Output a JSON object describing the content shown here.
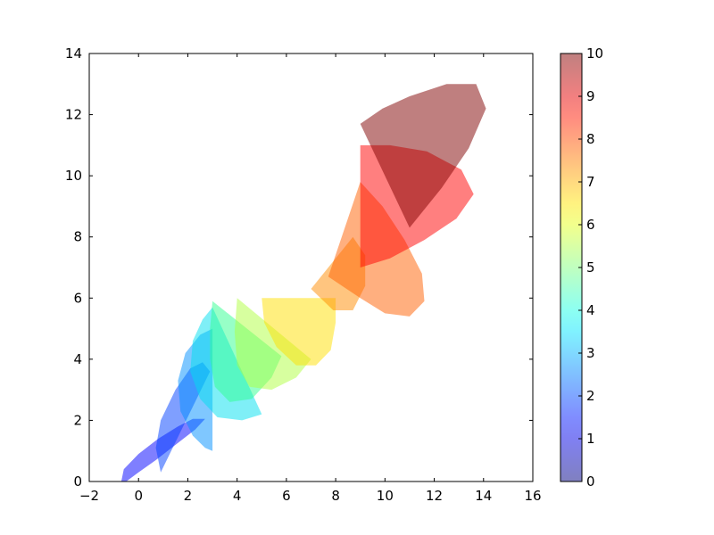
{
  "chart_data": {
    "type": "area",
    "xlim": [
      -2,
      16
    ],
    "ylim": [
      0,
      14
    ],
    "x_ticks": [
      -2,
      0,
      2,
      4,
      6,
      8,
      10,
      12,
      14,
      16
    ],
    "y_ticks": [
      0,
      2,
      4,
      6,
      8,
      10,
      12,
      14
    ],
    "x_tick_labels": [
      "−2",
      "0",
      "2",
      "4",
      "6",
      "8",
      "10",
      "12",
      "14",
      "16"
    ],
    "y_tick_labels": [
      "0",
      "2",
      "4",
      "6",
      "8",
      "10",
      "12",
      "14"
    ],
    "grid": false,
    "legend": "none",
    "colorbar": {
      "range": [
        0,
        10
      ],
      "ticks": [
        0,
        1,
        2,
        3,
        4,
        5,
        6,
        7,
        8,
        9,
        10
      ],
      "tick_labels": [
        "0",
        "1",
        "2",
        "3",
        "4",
        "5",
        "6",
        "7",
        "8",
        "9",
        "10"
      ],
      "colormap": "jet",
      "alpha": 0.5
    },
    "shapes": [
      {
        "value": 0,
        "color": "#0000ff",
        "polygon": [
          [
            -0.7,
            0.0
          ],
          [
            -0.6,
            0.4
          ],
          [
            0.0,
            0.9
          ],
          [
            0.8,
            1.4
          ],
          [
            1.6,
            1.8
          ],
          [
            2.2,
            2.05
          ],
          [
            2.7,
            2.05
          ],
          [
            2.3,
            1.7
          ],
          [
            1.5,
            1.2
          ],
          [
            0.7,
            0.7
          ],
          [
            0.0,
            0.3
          ],
          [
            -0.5,
            0.0
          ]
        ]
      },
      {
        "value": 1,
        "color": "#0040ff",
        "polygon": [
          [
            0.9,
            0.3
          ],
          [
            2.9,
            3.6
          ],
          [
            2.6,
            3.9
          ],
          [
            2.1,
            3.7
          ],
          [
            1.5,
            3.0
          ],
          [
            0.9,
            2.0
          ],
          [
            0.7,
            1.1
          ]
        ]
      },
      {
        "value": 2,
        "color": "#0090ff",
        "polygon": [
          [
            3.0,
            1.0
          ],
          [
            3.0,
            5.0
          ],
          [
            2.5,
            4.8
          ],
          [
            1.9,
            4.2
          ],
          [
            1.6,
            3.3
          ],
          [
            1.7,
            2.3
          ],
          [
            2.2,
            1.5
          ],
          [
            2.7,
            1.1
          ]
        ]
      },
      {
        "value": 3,
        "color": "#00e0f0",
        "polygon": [
          [
            3.0,
            5.7
          ],
          [
            5.0,
            2.2
          ],
          [
            4.2,
            2.0
          ],
          [
            3.2,
            2.1
          ],
          [
            2.5,
            2.7
          ],
          [
            2.1,
            3.6
          ],
          [
            2.2,
            4.6
          ],
          [
            2.6,
            5.3
          ]
        ]
      },
      {
        "value": 4,
        "color": "#30ff90",
        "polygon": [
          [
            3.0,
            5.9
          ],
          [
            5.8,
            4.1
          ],
          [
            5.4,
            3.4
          ],
          [
            4.6,
            2.7
          ],
          [
            3.7,
            2.6
          ],
          [
            3.1,
            3.1
          ],
          [
            2.9,
            4.0
          ],
          [
            2.9,
            5.0
          ]
        ]
      },
      {
        "value": 5,
        "color": "#b0ff40",
        "polygon": [
          [
            4.0,
            6.0
          ],
          [
            7.0,
            4.0
          ],
          [
            6.4,
            3.4
          ],
          [
            5.4,
            3.0
          ],
          [
            4.5,
            3.1
          ],
          [
            4.0,
            3.8
          ],
          [
            3.9,
            4.9
          ]
        ]
      },
      {
        "value": 6,
        "color": "#ffe000",
        "polygon": [
          [
            5.0,
            6.0
          ],
          [
            8.0,
            6.0
          ],
          [
            8.0,
            5.2
          ],
          [
            7.8,
            4.3
          ],
          [
            7.2,
            3.8
          ],
          [
            6.4,
            3.8
          ],
          [
            5.6,
            4.4
          ],
          [
            5.1,
            5.2
          ]
        ]
      },
      {
        "value": 7,
        "color": "#ff8c00",
        "polygon": [
          [
            7.0,
            6.3
          ],
          [
            8.7,
            8.0
          ],
          [
            9.2,
            7.4
          ],
          [
            9.2,
            6.4
          ],
          [
            8.7,
            5.6
          ],
          [
            7.9,
            5.6
          ]
        ]
      },
      {
        "value": 8,
        "color": "#ff6000",
        "polygon": [
          [
            7.7,
            6.7
          ],
          [
            9.0,
            9.8
          ],
          [
            9.9,
            9.0
          ],
          [
            10.8,
            7.9
          ],
          [
            11.5,
            6.8
          ],
          [
            11.6,
            5.9
          ],
          [
            11.0,
            5.4
          ],
          [
            10.0,
            5.5
          ],
          [
            9.0,
            6.0
          ]
        ]
      },
      {
        "value": 9,
        "color": "#ff0000",
        "polygon": [
          [
            9.0,
            11.0
          ],
          [
            9.0,
            7.0
          ],
          [
            10.2,
            7.3
          ],
          [
            11.6,
            7.9
          ],
          [
            12.9,
            8.6
          ],
          [
            13.6,
            9.4
          ],
          [
            13.1,
            10.2
          ],
          [
            11.7,
            10.8
          ],
          [
            10.2,
            11.0
          ]
        ]
      },
      {
        "value": 10,
        "color": "#800000",
        "polygon": [
          [
            9.0,
            11.7
          ],
          [
            11.0,
            8.3
          ],
          [
            12.3,
            9.6
          ],
          [
            13.4,
            10.9
          ],
          [
            14.1,
            12.2
          ],
          [
            13.7,
            13.0
          ],
          [
            12.5,
            13.0
          ],
          [
            11.0,
            12.6
          ],
          [
            9.9,
            12.2
          ]
        ]
      }
    ]
  }
}
